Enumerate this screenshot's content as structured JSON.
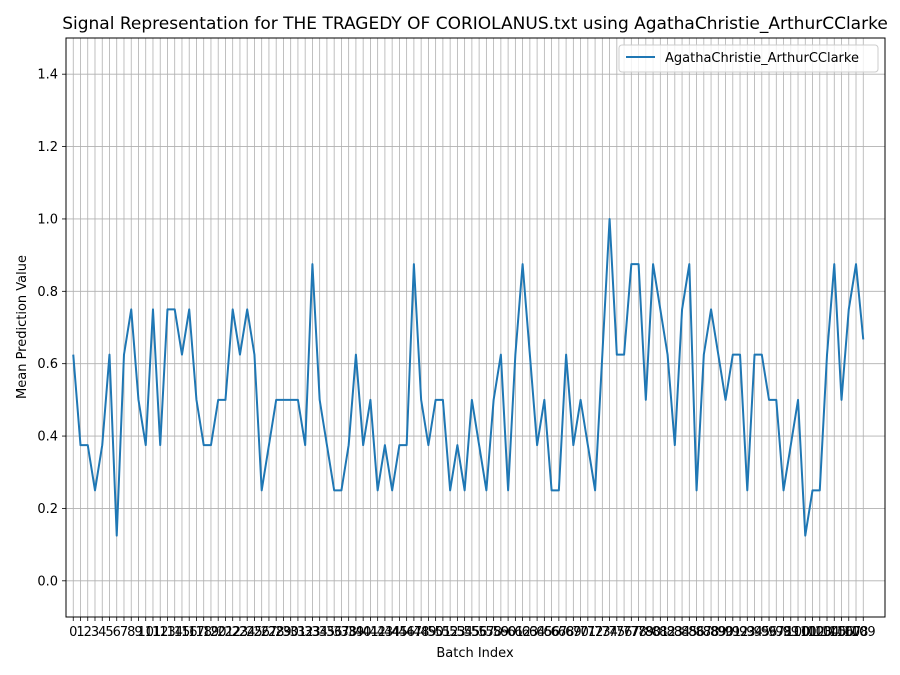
{
  "chart_data": {
    "type": "line",
    "title": "Signal Representation for THE TRAGEDY OF CORIOLANUS.txt using AgathaChristie_ArthurCClarke",
    "xlabel": "Batch Index",
    "ylabel": "Mean Prediction Value",
    "xlim": [
      -1,
      112
    ],
    "ylim": [
      -0.1,
      1.5
    ],
    "yticks": [
      0.0,
      0.2,
      0.4,
      0.6,
      0.8,
      1.0,
      1.2,
      1.4
    ],
    "ytick_labels": [
      "0.0",
      "0.2",
      "0.4",
      "0.6",
      "0.8",
      "1.0",
      "1.2",
      "1.4"
    ],
    "grid": true,
    "legend_position": "top-right",
    "color": "#1f77b4",
    "series": [
      {
        "name": "AgathaChristie_ArthurCClarke",
        "values": [
          0.625,
          0.375,
          0.375,
          0.25,
          0.375,
          0.625,
          0.125,
          0.625,
          0.75,
          0.5,
          0.375,
          0.75,
          0.375,
          0.75,
          0.75,
          0.625,
          0.75,
          0.5,
          0.375,
          0.375,
          0.5,
          0.5,
          0.75,
          0.625,
          0.75,
          0.625,
          0.25,
          0.375,
          0.5,
          0.5,
          0.5,
          0.5,
          0.375,
          0.875,
          0.5,
          0.375,
          0.25,
          0.25,
          0.375,
          0.625,
          0.375,
          0.5,
          0.25,
          0.375,
          0.25,
          0.375,
          0.375,
          0.875,
          0.5,
          0.375,
          0.5,
          0.5,
          0.25,
          0.375,
          0.25,
          0.5,
          0.375,
          0.25,
          0.5,
          0.625,
          0.25,
          0.625,
          0.875,
          0.625,
          0.375,
          0.5,
          0.25,
          0.25,
          0.625,
          0.375,
          0.5,
          0.375,
          0.25,
          0.625,
          1.0,
          0.625,
          0.625,
          0.875,
          0.875,
          0.5,
          0.875,
          0.75,
          0.625,
          0.375,
          0.75,
          0.875,
          0.25,
          0.625,
          0.75,
          0.625,
          0.5,
          0.625,
          0.625,
          0.25,
          0.625,
          0.625,
          0.5,
          0.5,
          0.25,
          0.375,
          0.5,
          0.125,
          0.25,
          0.25,
          0.625,
          0.875,
          0.5,
          0.75,
          0.875,
          0.667
        ]
      }
    ]
  }
}
